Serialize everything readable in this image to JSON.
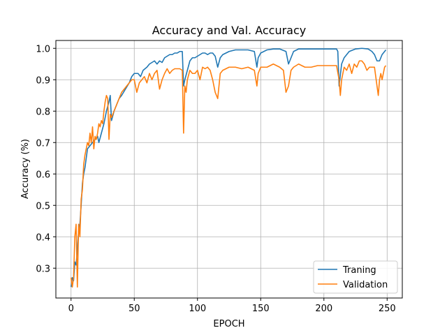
{
  "chart_data": {
    "type": "line",
    "title": "Accuracy and Val. Accuracy",
    "xlabel": "EPOCH",
    "ylabel": "Accuracy (%)",
    "xlim": [
      -12,
      262
    ],
    "ylim": [
      0.205,
      1.025
    ],
    "xticks": [
      0,
      50,
      100,
      150,
      200,
      250
    ],
    "yticks": [
      0.3,
      0.4,
      0.5,
      0.6,
      0.7,
      0.8,
      0.9,
      1.0
    ],
    "ytick_labels": [
      "0.3",
      "0.4",
      "0.5",
      "0.6",
      "0.7",
      "0.8",
      "0.9",
      "1.0"
    ],
    "grid": true,
    "legend": "lower-right",
    "series": [
      {
        "name": "Traning",
        "color": "#1f77b4",
        "points": [
          [
            0,
            0.24
          ],
          [
            1,
            0.27
          ],
          [
            2,
            0.26
          ],
          [
            3,
            0.32
          ],
          [
            4,
            0.31
          ],
          [
            5,
            0.36
          ],
          [
            6,
            0.42
          ],
          [
            7,
            0.44
          ],
          [
            8,
            0.5
          ],
          [
            9,
            0.57
          ],
          [
            10,
            0.6
          ],
          [
            11,
            0.62
          ],
          [
            12,
            0.65
          ],
          [
            13,
            0.68
          ],
          [
            15,
            0.69
          ],
          [
            17,
            0.7
          ],
          [
            19,
            0.71
          ],
          [
            21,
            0.72
          ],
          [
            22,
            0.7
          ],
          [
            24,
            0.73
          ],
          [
            26,
            0.76
          ],
          [
            28,
            0.8
          ],
          [
            30,
            0.83
          ],
          [
            31,
            0.85
          ],
          [
            32,
            0.77
          ],
          [
            34,
            0.8
          ],
          [
            36,
            0.82
          ],
          [
            38,
            0.84
          ],
          [
            40,
            0.85
          ],
          [
            43,
            0.87
          ],
          [
            46,
            0.89
          ],
          [
            48,
            0.91
          ],
          [
            50,
            0.92
          ],
          [
            53,
            0.92
          ],
          [
            55,
            0.91
          ],
          [
            57,
            0.93
          ],
          [
            60,
            0.94
          ],
          [
            62,
            0.95
          ],
          [
            64,
            0.955
          ],
          [
            66,
            0.96
          ],
          [
            68,
            0.95
          ],
          [
            70,
            0.96
          ],
          [
            72,
            0.955
          ],
          [
            74,
            0.97
          ],
          [
            76,
            0.975
          ],
          [
            78,
            0.98
          ],
          [
            80,
            0.98
          ],
          [
            82,
            0.985
          ],
          [
            84,
            0.985
          ],
          [
            86,
            0.99
          ],
          [
            88,
            0.99
          ],
          [
            89,
            0.88
          ],
          [
            90,
            0.9
          ],
          [
            92,
            0.93
          ],
          [
            94,
            0.96
          ],
          [
            96,
            0.97
          ],
          [
            98,
            0.97
          ],
          [
            100,
            0.975
          ],
          [
            102,
            0.98
          ],
          [
            104,
            0.985
          ],
          [
            106,
            0.985
          ],
          [
            108,
            0.98
          ],
          [
            110,
            0.985
          ],
          [
            112,
            0.985
          ],
          [
            114,
            0.975
          ],
          [
            116,
            0.94
          ],
          [
            118,
            0.97
          ],
          [
            120,
            0.98
          ],
          [
            125,
            0.99
          ],
          [
            130,
            0.995
          ],
          [
            135,
            0.995
          ],
          [
            140,
            0.995
          ],
          [
            145,
            0.99
          ],
          [
            147,
            0.94
          ],
          [
            148,
            0.97
          ],
          [
            150,
            0.985
          ],
          [
            155,
            0.995
          ],
          [
            160,
            0.998
          ],
          [
            165,
            0.998
          ],
          [
            170,
            0.99
          ],
          [
            172,
            0.95
          ],
          [
            174,
            0.97
          ],
          [
            176,
            0.99
          ],
          [
            180,
            0.998
          ],
          [
            190,
            0.998
          ],
          [
            200,
            0.998
          ],
          [
            210,
            0.998
          ],
          [
            211,
            0.99
          ],
          [
            212,
            0.88
          ],
          [
            214,
            0.95
          ],
          [
            216,
            0.97
          ],
          [
            220,
            0.99
          ],
          [
            225,
            0.998
          ],
          [
            230,
            1.0
          ],
          [
            235,
            0.998
          ],
          [
            238,
            0.99
          ],
          [
            240,
            0.98
          ],
          [
            242,
            0.96
          ],
          [
            244,
            0.96
          ],
          [
            246,
            0.98
          ],
          [
            248,
            0.99
          ],
          [
            249,
            0.995
          ]
        ]
      },
      {
        "name": "Validation",
        "color": "#ff7f0e",
        "points": [
          [
            0,
            0.27
          ],
          [
            1,
            0.24
          ],
          [
            2,
            0.27
          ],
          [
            3,
            0.4
          ],
          [
            4,
            0.44
          ],
          [
            5,
            0.24
          ],
          [
            6,
            0.44
          ],
          [
            7,
            0.4
          ],
          [
            8,
            0.52
          ],
          [
            9,
            0.55
          ],
          [
            10,
            0.63
          ],
          [
            11,
            0.66
          ],
          [
            12,
            0.68
          ],
          [
            13,
            0.7
          ],
          [
            14,
            0.69
          ],
          [
            15,
            0.73
          ],
          [
            16,
            0.7
          ],
          [
            17,
            0.75
          ],
          [
            18,
            0.68
          ],
          [
            19,
            0.72
          ],
          [
            20,
            0.71
          ],
          [
            21,
            0.73
          ],
          [
            22,
            0.76
          ],
          [
            23,
            0.75
          ],
          [
            24,
            0.77
          ],
          [
            25,
            0.76
          ],
          [
            26,
            0.8
          ],
          [
            27,
            0.83
          ],
          [
            28,
            0.85
          ],
          [
            29,
            0.84
          ],
          [
            30,
            0.71
          ],
          [
            31,
            0.79
          ],
          [
            32,
            0.78
          ],
          [
            34,
            0.8
          ],
          [
            36,
            0.82
          ],
          [
            38,
            0.84
          ],
          [
            40,
            0.86
          ],
          [
            42,
            0.87
          ],
          [
            44,
            0.88
          ],
          [
            46,
            0.89
          ],
          [
            48,
            0.9
          ],
          [
            50,
            0.9
          ],
          [
            52,
            0.86
          ],
          [
            54,
            0.89
          ],
          [
            56,
            0.9
          ],
          [
            58,
            0.91
          ],
          [
            60,
            0.89
          ],
          [
            62,
            0.92
          ],
          [
            64,
            0.9
          ],
          [
            66,
            0.92
          ],
          [
            68,
            0.93
          ],
          [
            70,
            0.87
          ],
          [
            72,
            0.9
          ],
          [
            74,
            0.92
          ],
          [
            76,
            0.935
          ],
          [
            78,
            0.92
          ],
          [
            80,
            0.93
          ],
          [
            82,
            0.935
          ],
          [
            84,
            0.935
          ],
          [
            86,
            0.935
          ],
          [
            88,
            0.93
          ],
          [
            89,
            0.73
          ],
          [
            90,
            0.88
          ],
          [
            91,
            0.86
          ],
          [
            92,
            0.9
          ],
          [
            94,
            0.93
          ],
          [
            96,
            0.92
          ],
          [
            98,
            0.92
          ],
          [
            100,
            0.93
          ],
          [
            102,
            0.9
          ],
          [
            104,
            0.94
          ],
          [
            106,
            0.935
          ],
          [
            108,
            0.94
          ],
          [
            110,
            0.93
          ],
          [
            112,
            0.9
          ],
          [
            114,
            0.86
          ],
          [
            116,
            0.84
          ],
          [
            118,
            0.92
          ],
          [
            120,
            0.93
          ],
          [
            125,
            0.94
          ],
          [
            130,
            0.94
          ],
          [
            135,
            0.935
          ],
          [
            140,
            0.94
          ],
          [
            145,
            0.93
          ],
          [
            147,
            0.88
          ],
          [
            148,
            0.92
          ],
          [
            150,
            0.94
          ],
          [
            155,
            0.94
          ],
          [
            160,
            0.95
          ],
          [
            165,
            0.94
          ],
          [
            168,
            0.93
          ],
          [
            170,
            0.86
          ],
          [
            172,
            0.88
          ],
          [
            174,
            0.93
          ],
          [
            176,
            0.94
          ],
          [
            180,
            0.95
          ],
          [
            185,
            0.94
          ],
          [
            190,
            0.94
          ],
          [
            195,
            0.945
          ],
          [
            200,
            0.945
          ],
          [
            205,
            0.945
          ],
          [
            210,
            0.945
          ],
          [
            212,
            0.9
          ],
          [
            213,
            0.85
          ],
          [
            214,
            0.9
          ],
          [
            216,
            0.94
          ],
          [
            218,
            0.93
          ],
          [
            220,
            0.95
          ],
          [
            222,
            0.92
          ],
          [
            224,
            0.95
          ],
          [
            226,
            0.94
          ],
          [
            228,
            0.96
          ],
          [
            230,
            0.96
          ],
          [
            232,
            0.95
          ],
          [
            234,
            0.93
          ],
          [
            236,
            0.94
          ],
          [
            238,
            0.94
          ],
          [
            240,
            0.94
          ],
          [
            242,
            0.88
          ],
          [
            243,
            0.85
          ],
          [
            244,
            0.9
          ],
          [
            245,
            0.92
          ],
          [
            246,
            0.9
          ],
          [
            248,
            0.94
          ],
          [
            249,
            0.945
          ]
        ]
      }
    ]
  }
}
